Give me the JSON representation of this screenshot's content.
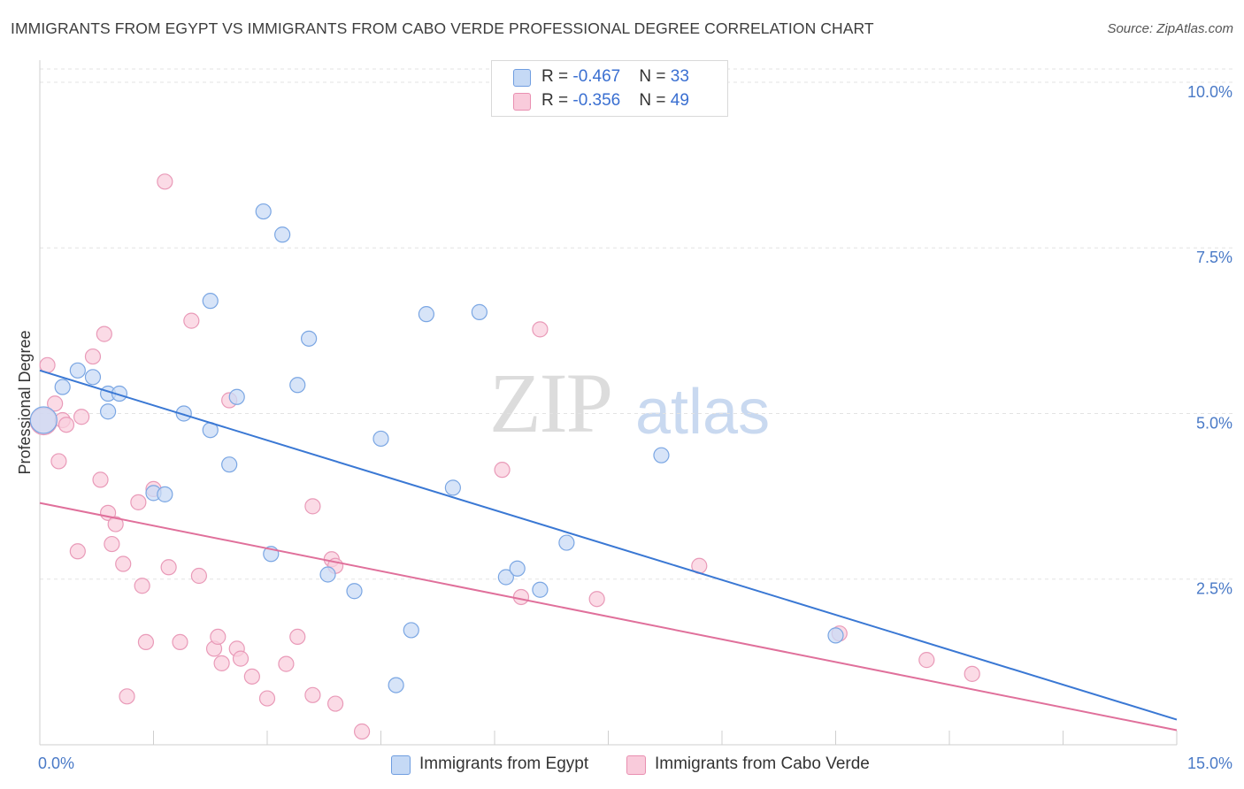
{
  "title": "IMMIGRANTS FROM EGYPT VS IMMIGRANTS FROM CABO VERDE PROFESSIONAL DEGREE CORRELATION CHART",
  "source": "Source: ZipAtlas.com",
  "watermark": {
    "zip": "ZIP",
    "atlas": "atlas"
  },
  "colors": {
    "egypt": "#3a78d4",
    "egypt_fill": "#b8d0f3",
    "cabo": "#e0709b",
    "cabo_fill": "#f7bfd2",
    "tick": "#4a7ac7"
  },
  "legend": {
    "egypt": {
      "r_label": "R = ",
      "r_value": "-0.467",
      "n_label": "N = ",
      "n_value": "33"
    },
    "cabo": {
      "r_label": "R = ",
      "r_value": "-0.356",
      "n_label": "N = ",
      "n_value": "49"
    }
  },
  "bottom_legend": {
    "egypt": "Immigrants from Egypt",
    "cabo": "Immigrants from Cabo Verde"
  },
  "chart_data": {
    "type": "scatter",
    "title": "IMMIGRANTS FROM EGYPT VS IMMIGRANTS FROM CABO VERDE PROFESSIONAL DEGREE CORRELATION CHART",
    "xlabel": "",
    "ylabel": "Professional Degree",
    "xlim": [
      0,
      15
    ],
    "ylim": [
      0,
      10.2
    ],
    "x_tick_labels": {
      "min": "0.0%",
      "max": "15.0%"
    },
    "y_ticks": [
      {
        "value": 2.5,
        "label": "2.5%"
      },
      {
        "value": 5.0,
        "label": "5.0%"
      },
      {
        "value": 7.5,
        "label": "7.5%"
      },
      {
        "value": 10.0,
        "label": "10.0%"
      }
    ],
    "grid": true,
    "series": [
      {
        "name": "Immigrants from Egypt",
        "trend": {
          "x": [
            0.0,
            15.0
          ],
          "y": [
            5.65,
            0.38
          ]
        },
        "points": [
          {
            "x": 0.05,
            "y": 4.9,
            "big": true
          },
          {
            "x": 0.3,
            "y": 5.4
          },
          {
            "x": 0.5,
            "y": 5.65
          },
          {
            "x": 0.7,
            "y": 5.55
          },
          {
            "x": 0.9,
            "y": 5.3
          },
          {
            "x": 1.05,
            "y": 5.3
          },
          {
            "x": 0.9,
            "y": 5.03
          },
          {
            "x": 1.5,
            "y": 3.8
          },
          {
            "x": 1.65,
            "y": 3.78
          },
          {
            "x": 1.9,
            "y": 5.0
          },
          {
            "x": 2.25,
            "y": 6.7
          },
          {
            "x": 2.25,
            "y": 4.75
          },
          {
            "x": 2.5,
            "y": 4.23
          },
          {
            "x": 2.6,
            "y": 5.25
          },
          {
            "x": 2.95,
            "y": 8.05
          },
          {
            "x": 3.05,
            "y": 2.88
          },
          {
            "x": 3.2,
            "y": 7.7
          },
          {
            "x": 3.4,
            "y": 5.43
          },
          {
            "x": 3.55,
            "y": 6.13
          },
          {
            "x": 3.8,
            "y": 2.57
          },
          {
            "x": 4.15,
            "y": 2.32
          },
          {
            "x": 4.5,
            "y": 4.62
          },
          {
            "x": 4.9,
            "y": 1.73
          },
          {
            "x": 4.7,
            "y": 0.9
          },
          {
            "x": 5.1,
            "y": 6.5
          },
          {
            "x": 5.45,
            "y": 3.88
          },
          {
            "x": 5.8,
            "y": 6.53
          },
          {
            "x": 6.15,
            "y": 2.53
          },
          {
            "x": 6.3,
            "y": 2.66
          },
          {
            "x": 6.6,
            "y": 2.34
          },
          {
            "x": 6.95,
            "y": 3.05
          },
          {
            "x": 8.2,
            "y": 4.37
          },
          {
            "x": 10.5,
            "y": 1.65
          }
        ]
      },
      {
        "name": "Immigrants from Cabo Verde",
        "trend": {
          "x": [
            0.0,
            15.0
          ],
          "y": [
            3.65,
            0.22
          ]
        },
        "points": [
          {
            "x": 0.05,
            "y": 4.88,
            "big": true
          },
          {
            "x": 0.1,
            "y": 5.73
          },
          {
            "x": 0.2,
            "y": 5.15
          },
          {
            "x": 0.25,
            "y": 4.28
          },
          {
            "x": 0.3,
            "y": 4.9
          },
          {
            "x": 0.35,
            "y": 4.83
          },
          {
            "x": 0.5,
            "y": 2.92
          },
          {
            "x": 0.55,
            "y": 4.95
          },
          {
            "x": 0.7,
            "y": 5.86
          },
          {
            "x": 0.8,
            "y": 4.0
          },
          {
            "x": 0.85,
            "y": 6.2
          },
          {
            "x": 0.9,
            "y": 3.5
          },
          {
            "x": 0.95,
            "y": 3.03
          },
          {
            "x": 1.0,
            "y": 3.33
          },
          {
            "x": 1.1,
            "y": 2.73
          },
          {
            "x": 1.15,
            "y": 0.73
          },
          {
            "x": 1.3,
            "y": 3.66
          },
          {
            "x": 1.35,
            "y": 2.4
          },
          {
            "x": 1.4,
            "y": 1.55
          },
          {
            "x": 1.5,
            "y": 3.86
          },
          {
            "x": 1.65,
            "y": 8.5
          },
          {
            "x": 1.7,
            "y": 2.68
          },
          {
            "x": 1.85,
            "y": 1.55
          },
          {
            "x": 2.0,
            "y": 6.4
          },
          {
            "x": 2.1,
            "y": 2.55
          },
          {
            "x": 2.3,
            "y": 1.45
          },
          {
            "x": 2.35,
            "y": 1.63
          },
          {
            "x": 2.4,
            "y": 1.23
          },
          {
            "x": 2.5,
            "y": 5.2
          },
          {
            "x": 2.6,
            "y": 1.45
          },
          {
            "x": 2.65,
            "y": 1.3
          },
          {
            "x": 2.8,
            "y": 1.03
          },
          {
            "x": 3.0,
            "y": 0.7
          },
          {
            "x": 3.25,
            "y": 1.22
          },
          {
            "x": 3.4,
            "y": 1.63
          },
          {
            "x": 3.6,
            "y": 3.6
          },
          {
            "x": 3.6,
            "y": 0.75
          },
          {
            "x": 3.85,
            "y": 2.8
          },
          {
            "x": 3.9,
            "y": 2.7
          },
          {
            "x": 3.9,
            "y": 0.62
          },
          {
            "x": 4.25,
            "y": 0.2
          },
          {
            "x": 6.1,
            "y": 4.15
          },
          {
            "x": 6.35,
            "y": 2.23
          },
          {
            "x": 6.6,
            "y": 6.27
          },
          {
            "x": 7.35,
            "y": 2.2
          },
          {
            "x": 8.7,
            "y": 2.7
          },
          {
            "x": 10.55,
            "y": 1.68
          },
          {
            "x": 11.7,
            "y": 1.28
          },
          {
            "x": 12.3,
            "y": 1.07
          }
        ]
      }
    ]
  }
}
